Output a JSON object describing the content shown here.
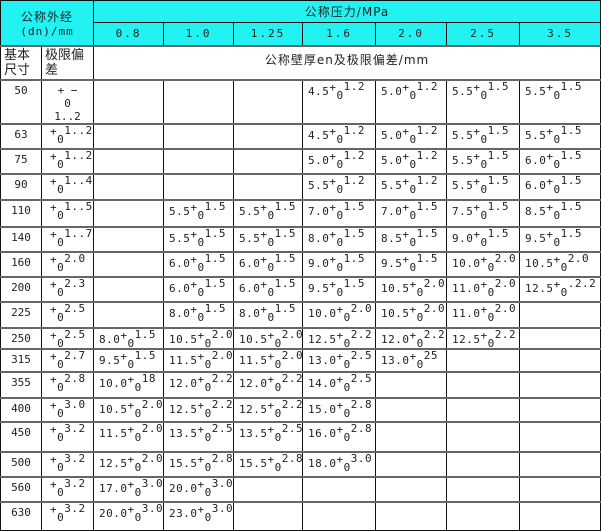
{
  "header": {
    "outer_diameter": "公称外经",
    "outer_diameter_unit": "(dn)/mm",
    "pressure": "公称压力/MPa",
    "pressures": [
      "0.8",
      "1.0",
      "1.25",
      "1.6",
      "2.0",
      "2.5",
      "3.5"
    ],
    "basic_size": "基本尺寸",
    "tolerance": "极限偏差",
    "wall": "公称壁厚en及极限偏差/mm"
  },
  "notation": {
    "plus": "+",
    "lower": "0"
  },
  "first_row_tolerance": {
    "top": "+ −",
    "mid": "0",
    "bottom": "1..2"
  },
  "rows": [
    {
      "size": "50",
      "tol": "",
      "cells": [
        null,
        null,
        null,
        [
          "4.5",
          "1.2"
        ],
        [
          "5.0",
          "1.2"
        ],
        [
          "5.5",
          "1.5"
        ],
        [
          "5.5",
          "1.5"
        ]
      ]
    },
    {
      "size": "63",
      "tol": "1..2",
      "cells": [
        null,
        null,
        null,
        [
          "4.5",
          "1.2"
        ],
        [
          "5.0",
          "1.2"
        ],
        [
          "5.5",
          "1.5"
        ],
        [
          "5.5",
          "1.5"
        ]
      ]
    },
    {
      "size": "75",
      "tol": "1..2",
      "cells": [
        null,
        null,
        null,
        [
          "5.0",
          "1.2"
        ],
        [
          "5.0",
          "1.2"
        ],
        [
          "5.5",
          "1.5"
        ],
        [
          "6.0",
          "1.5"
        ]
      ]
    },
    {
      "size": "90",
      "tol": "1..4",
      "cells": [
        null,
        null,
        null,
        [
          "5.5",
          "1.2"
        ],
        [
          "5.5",
          "1.2"
        ],
        [
          "5.5",
          "1.5"
        ],
        [
          "6.0",
          "1.5"
        ]
      ]
    },
    {
      "size": "110",
      "tol": "1..5",
      "cells": [
        null,
        [
          "5.5",
          "1.5"
        ],
        [
          "5.5",
          "1.5"
        ],
        [
          "7.0",
          "1.5"
        ],
        [
          "7.0",
          "1.5"
        ],
        [
          "7.5",
          "1.5"
        ],
        [
          "8.5",
          "1.5"
        ]
      ]
    },
    {
      "size": "140",
      "tol": "1..7",
      "cells": [
        null,
        [
          "5.5",
          "1.5"
        ],
        [
          "5.5",
          "1.5"
        ],
        [
          "8.0",
          "1.5"
        ],
        [
          "8.5",
          "1.5"
        ],
        [
          "9.0",
          "1.5"
        ],
        [
          "9.5",
          "1.5"
        ]
      ]
    },
    {
      "size": "160",
      "tol": "2.0",
      "cells": [
        null,
        [
          "6.0",
          "1.5"
        ],
        [
          "6.0",
          "1.5"
        ],
        [
          "9.0",
          "1.5"
        ],
        [
          "9.5",
          "1.5"
        ],
        [
          "10.0",
          "2.0"
        ],
        [
          "10.5",
          "2.0"
        ]
      ]
    },
    {
      "size": "200",
      "tol": "2.3",
      "cells": [
        null,
        [
          "6.0",
          "1.5"
        ],
        [
          "6.0",
          "1.5"
        ],
        [
          "9.5",
          "1.5"
        ],
        [
          "10.5",
          "2.0"
        ],
        [
          "11.0",
          "2.0"
        ],
        [
          "12.5",
          ".2.2"
        ]
      ]
    },
    {
      "size": "225",
      "tol": "2.5",
      "cells": [
        null,
        [
          "8.0",
          "1.5"
        ],
        [
          "8.0",
          "1.5"
        ],
        [
          "10.0",
          "2.0"
        ],
        [
          "10.5",
          "2.0"
        ],
        [
          "11.0",
          "2.0"
        ],
        null
      ]
    },
    {
      "size": "250",
      "tol": "2.5",
      "cells": [
        [
          "8.0",
          "1.5"
        ],
        [
          "10.5",
          "2.0"
        ],
        [
          "10.5",
          "2.0"
        ],
        [
          "12.5",
          "2.2"
        ],
        [
          "12.0",
          "2.2"
        ],
        [
          "12.5",
          "2.2"
        ],
        null
      ]
    },
    {
      "size": "315",
      "tol": "2.7",
      "cells": [
        [
          "9.5",
          "1.5"
        ],
        [
          "11.5",
          "2.0"
        ],
        [
          "11.5",
          "2.0"
        ],
        [
          "13.0",
          "2.5"
        ],
        [
          "13.0",
          "25"
        ],
        null,
        null
      ]
    },
    {
      "size": "355",
      "tol": "2.8",
      "cells": [
        [
          "10.0",
          "18"
        ],
        [
          "12.0",
          "2.2"
        ],
        [
          "12.0",
          "2.2"
        ],
        [
          "14.0",
          "2.5"
        ],
        null,
        null,
        null
      ]
    },
    {
      "size": "400",
      "tol": "3.0",
      "cells": [
        [
          "10.5",
          "2.0"
        ],
        [
          "12.5",
          "2.2"
        ],
        [
          "12.5",
          "2.2"
        ],
        [
          "15.0",
          "2.8"
        ],
        null,
        null,
        null
      ]
    },
    {
      "size": "450",
      "tol": "3.2",
      "cells": [
        [
          "11.5",
          "2.0"
        ],
        [
          "13.5",
          "2.5"
        ],
        [
          "13.5",
          "2.5"
        ],
        [
          "16.0",
          "2.8"
        ],
        null,
        null,
        null
      ]
    },
    {
      "size": "500",
      "tol": "3.2",
      "cells": [
        [
          "12.5",
          "2.0"
        ],
        [
          "15.5",
          "2.8"
        ],
        [
          "15.5",
          "2.8"
        ],
        [
          "18.0",
          "3.0"
        ],
        null,
        null,
        null
      ]
    },
    {
      "size": "560",
      "tol": "3.2",
      "cells": [
        [
          "17.0",
          "3.0"
        ],
        [
          "20.0",
          "3.0"
        ],
        null,
        null,
        null,
        null,
        null
      ]
    },
    {
      "size": "630",
      "tol": "3.2",
      "cells": [
        [
          "20.0",
          "3.0"
        ],
        [
          "23.0",
          "3.0"
        ],
        null,
        null,
        null,
        null,
        null
      ]
    }
  ],
  "colors": {
    "header_bg": "#22f2f2",
    "border": "#111111"
  }
}
